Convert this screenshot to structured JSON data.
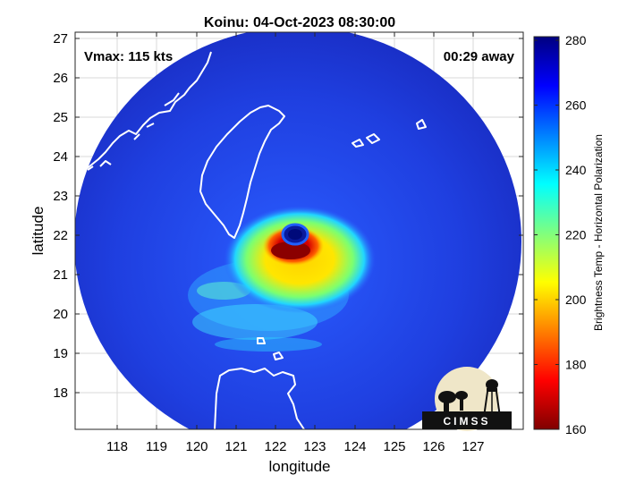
{
  "title": "Koinu: 04-Oct-2023 08:30:00",
  "vmax_label": "Vmax: 115 kts",
  "time_away_label": "00:29 away",
  "xlabel": "longitude",
  "ylabel": "latitude",
  "x_ticks": [
    "118",
    "119",
    "120",
    "121",
    "122",
    "123",
    "124",
    "125",
    "126",
    "127"
  ],
  "y_ticks": [
    "27",
    "26",
    "25",
    "24",
    "23",
    "22",
    "21",
    "20",
    "19",
    "18"
  ],
  "colorbar": {
    "label": "Brightness Temp - Horizontal Polarization",
    "ticks": [
      "280",
      "260",
      "240",
      "220",
      "200",
      "180",
      "160"
    ],
    "range": [
      160,
      280
    ],
    "colormap": "jet"
  },
  "logo": {
    "text": "CIMSS"
  },
  "colors": {
    "coast": "#ffffff",
    "background_outside_swath": "#ffffff",
    "swath_base": "#1f3fd8",
    "eye": "#0a1a9c",
    "eyewall": "#8b0000"
  }
}
